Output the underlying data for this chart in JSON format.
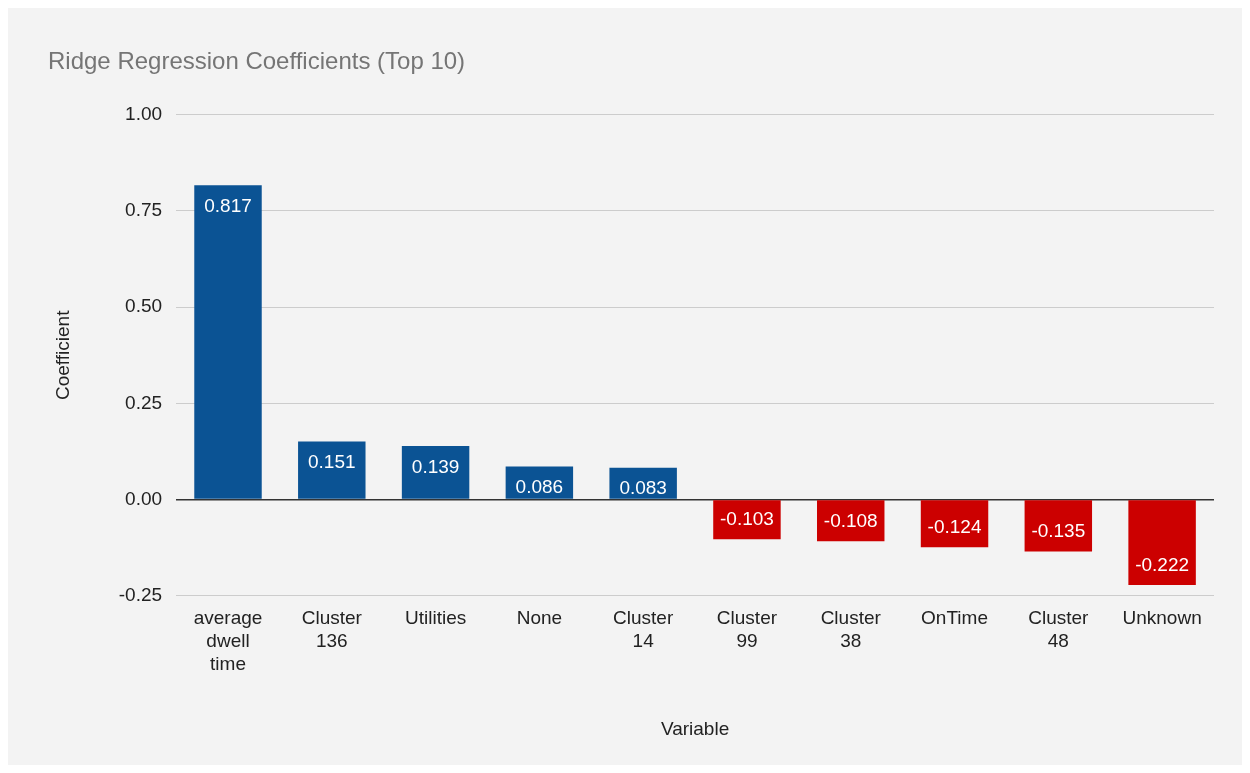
{
  "chart_data": {
    "type": "bar",
    "title": "Ridge Regression Coefficients (Top 10)",
    "xlabel": "Variable",
    "ylabel": "Coefficient",
    "categories": [
      "average dwell time",
      "Cluster 136",
      "Utilities",
      "None",
      "Cluster 14",
      "Cluster 99",
      "Cluster 38",
      "OnTime",
      "Cluster 48",
      "Unknown"
    ],
    "values": [
      0.817,
      0.151,
      0.139,
      0.086,
      0.083,
      -0.103,
      -0.108,
      -0.124,
      -0.135,
      -0.222
    ],
    "colors": [
      "#0b5394",
      "#0b5394",
      "#0b5394",
      "#0b5394",
      "#0b5394",
      "#cc0000",
      "#cc0000",
      "#cc0000",
      "#cc0000",
      "#cc0000"
    ],
    "ylim": [
      -0.25,
      1
    ],
    "yticks": [
      {
        "value": -0.25,
        "label": "-0.25"
      },
      {
        "value": 0,
        "label": "0.00"
      },
      {
        "value": 0.25,
        "label": "0.25"
      },
      {
        "value": 0.5,
        "label": "0.50"
      },
      {
        "value": 0.75,
        "label": "0.75"
      },
      {
        "value": 1,
        "label": "1.00"
      }
    ],
    "grid": "y",
    "legend": false,
    "data_labels": true
  }
}
